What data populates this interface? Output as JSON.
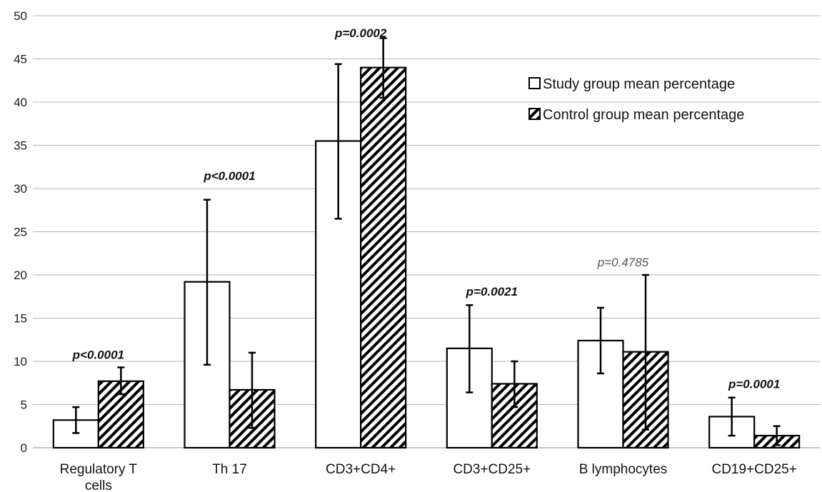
{
  "chart_data": {
    "type": "bar",
    "categories": [
      "Regulatory T cells",
      "Th 17",
      "CD3+CD4+",
      "CD3+CD25+",
      "B lymphocytes",
      "CD19+CD25+"
    ],
    "category_lines": [
      [
        "Regulatory T",
        "cells"
      ],
      [
        "Th 17"
      ],
      [
        "CD3+CD4+"
      ],
      [
        "CD3+CD25+"
      ],
      [
        "B lymphocytes"
      ],
      [
        "CD19+CD25+"
      ]
    ],
    "series": [
      {
        "name": "Study group mean percentage",
        "fill": "white",
        "values": [
          3.2,
          19.2,
          35.5,
          11.5,
          12.4,
          3.6
        ],
        "error_low": [
          1.7,
          9.6,
          26.5,
          6.4,
          8.6,
          1.4
        ],
        "error_high": [
          4.7,
          28.7,
          44.4,
          16.5,
          16.2,
          5.8
        ]
      },
      {
        "name": "Control group mean percentage",
        "fill": "hatched",
        "values": [
          7.7,
          6.7,
          44.0,
          7.4,
          11.1,
          1.4
        ],
        "error_low": [
          6.2,
          2.3,
          40.5,
          4.7,
          2.1,
          0.3
        ],
        "error_high": [
          9.3,
          11.0,
          47.4,
          10.0,
          20.0,
          2.5
        ]
      }
    ],
    "annotations": [
      {
        "category": "Regulatory T cells",
        "text": "p<0.0001",
        "bold": true,
        "y": 10.8
      },
      {
        "category": "Th 17",
        "text": "p<0.0001",
        "bold": true,
        "y": 31.5
      },
      {
        "category": "CD3+CD4+",
        "text": "p=0.0002",
        "bold": true,
        "y": 48.0
      },
      {
        "category": "CD3+CD25+",
        "text": "p=0.0021",
        "bold": true,
        "y": 18.1
      },
      {
        "category": "B lymphocytes",
        "text": "p=0.4785",
        "bold": false,
        "y": 21.5
      },
      {
        "category": "CD19+CD25+",
        "text": "p=0.0001",
        "bold": true,
        "y": 7.4
      }
    ],
    "ylim": [
      0,
      50
    ],
    "yticks": [
      0,
      5,
      10,
      15,
      20,
      25,
      30,
      35,
      40,
      45,
      50
    ],
    "grid": true,
    "legend_position": "top-right",
    "xlabel": "",
    "ylabel": "",
    "colors": {
      "bar_edge": "#000000",
      "grid": "#b3b3b3",
      "bar_fill": "#ffffff"
    }
  }
}
